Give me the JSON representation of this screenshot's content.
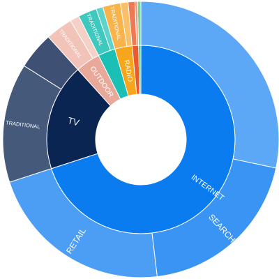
{
  "chart_data": {
    "type": "sunburst",
    "title": "",
    "inner": [
      {
        "name": "INTERNET",
        "value": 70.7,
        "color": "#0a7cf0",
        "label": "INTERNET"
      },
      {
        "name": "TV",
        "value": 18.5,
        "color": "#0b2552",
        "label": "TV"
      },
      {
        "name": "OUTDOOR",
        "value": 4.3,
        "color": "#e9a99a",
        "label": "OUTDOOR"
      },
      {
        "name": "teal",
        "value": 3.0,
        "color": "#1bbfb3",
        "label": ""
      },
      {
        "name": "RADIO",
        "value": 3.0,
        "color": "#f7a51c",
        "label": "RADIO"
      },
      {
        "name": "red",
        "value": 1.1,
        "color": "#ea5a2e",
        "label": ""
      },
      {
        "name": "green",
        "value": 0.4,
        "color": "#57c27c",
        "label": ""
      }
    ],
    "outer": [
      {
        "parent": "INTERNET",
        "name": "",
        "value": 28.6,
        "color": "#5da8f6",
        "label": ""
      },
      {
        "parent": "INTERNET",
        "name": "SEARCH",
        "value": 20.0,
        "color": "#3a94f4",
        "label": "SEARCH"
      },
      {
        "parent": "INTERNET",
        "name": "RETAIL",
        "value": 22.1,
        "color": "#4c9ef5",
        "label": "RETAIL"
      },
      {
        "parent": "TV",
        "name": "TRADITIONAL",
        "value": 14.1,
        "color": "#45597a",
        "label": "TRADITIONAL"
      },
      {
        "parent": "TV",
        "name": "",
        "value": 4.4,
        "color": "#3e5073",
        "label": ""
      },
      {
        "parent": "OUTDOOR",
        "name": "TRADITIONAL",
        "value": 3.2,
        "color": "#f2c3b8",
        "label": "TRADITIONAL"
      },
      {
        "parent": "OUTDOOR",
        "name": "",
        "value": 1.1,
        "color": "#f5d0c7",
        "label": ""
      },
      {
        "parent": "teal",
        "name": "TRADITIONAL",
        "value": 2.2,
        "color": "#3fc8bd",
        "label": "TRADITIONAL"
      },
      {
        "parent": "teal",
        "name": "",
        "value": 0.8,
        "color": "#5fd2c9",
        "label": ""
      },
      {
        "parent": "RADIO",
        "name": "TRADITIONAL",
        "value": 2.1,
        "color": "#f8b44a",
        "label": "TRADITIONAL"
      },
      {
        "parent": "RADIO",
        "name": "",
        "value": 0.9,
        "color": "#f9c06a",
        "label": ""
      },
      {
        "parent": "red",
        "name": "",
        "value": 0.8,
        "color": "#ee7a55",
        "label": ""
      },
      {
        "parent": "red",
        "name": "",
        "value": 0.3,
        "color": "#f19877",
        "label": ""
      },
      {
        "parent": "green",
        "name": "",
        "value": 0.4,
        "color": "#7bd29a",
        "label": ""
      }
    ]
  }
}
